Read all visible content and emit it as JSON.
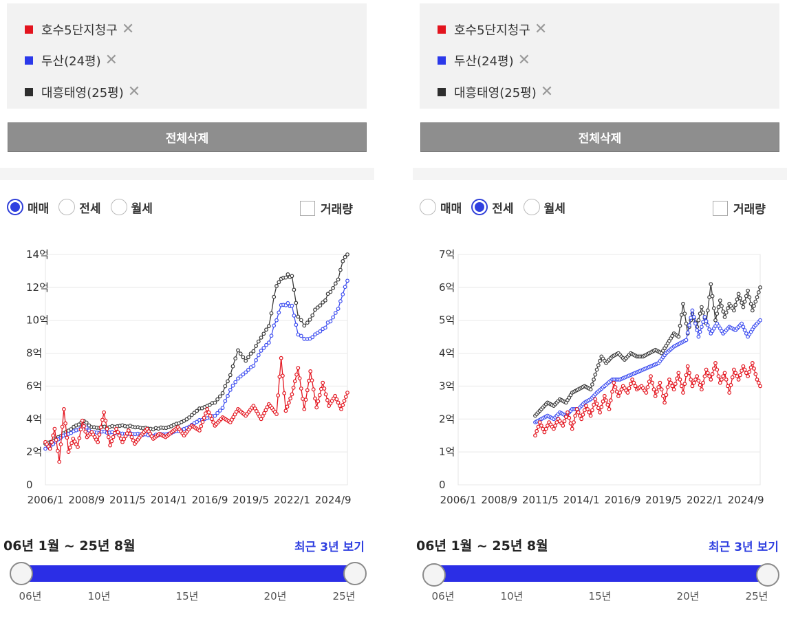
{
  "compare_list": {
    "items": [
      {
        "label": "호수5단지청구",
        "color": "#e3141e"
      },
      {
        "label": "두산(24평)",
        "color": "#2b39ea"
      },
      {
        "label": "대흥태영(25평)",
        "color": "#2e2e2e"
      }
    ],
    "remove_glyph": "✕"
  },
  "clear_button_label": "전체삭제",
  "trade_types": [
    "매매",
    "전세",
    "월세"
  ],
  "volume_label": "거래량",
  "period_text": "06년 1월 ~ 25년 8월",
  "recent_link": "최근 3년 보기",
  "slider_ticks": [
    "06년",
    "10년",
    "15년",
    "20년",
    "25년"
  ],
  "panels": [
    {
      "selected_trade": "매매"
    },
    {
      "selected_trade": "전세"
    }
  ],
  "chart_data": [
    {
      "type": "line",
      "trade": "매매",
      "x_range": [
        2006.0,
        2025.6
      ],
      "x_ticks": [
        2006.0,
        2008.67,
        2011.33,
        2014.0,
        2016.67,
        2019.33,
        2022.0,
        2024.67
      ],
      "x_tick_labels": [
        "2006/1",
        "2008/9",
        "2011/5",
        "2014/1",
        "2016/9",
        "2019/5",
        "2022/1",
        "2024/9"
      ],
      "ylim": [
        0,
        14
      ],
      "y_ticks": [
        0,
        2,
        4,
        6,
        8,
        10,
        12,
        14
      ],
      "y_tick_labels": [
        "0",
        "2억",
        "4억",
        "6억",
        "8억",
        "10억",
        "12억",
        "14억"
      ],
      "grid": true,
      "series": [
        {
          "name": "대흥태영(25평)",
          "color": "#3a3a3a",
          "style": "smooth",
          "x": [
            2006.0,
            2006.5,
            2007.0,
            2007.5,
            2008.0,
            2008.5,
            2009.0,
            2010.0,
            2011.0,
            2012.0,
            2013.0,
            2014.0,
            2015.0,
            2016.0,
            2017.0,
            2017.5,
            2018.0,
            2018.5,
            2019.0,
            2019.5,
            2020.0,
            2020.5,
            2021.0,
            2021.3,
            2021.6,
            2022.0,
            2022.4,
            2022.8,
            2023.0,
            2023.5,
            2024.0,
            2024.5,
            2025.0,
            2025.3,
            2025.6
          ],
          "y": [
            2.5,
            2.7,
            3.0,
            3.3,
            3.6,
            3.9,
            3.5,
            3.5,
            3.6,
            3.5,
            3.4,
            3.5,
            3.9,
            4.6,
            5.0,
            5.6,
            6.7,
            8.1,
            7.5,
            8.2,
            9.0,
            9.6,
            12.2,
            12.5,
            12.7,
            12.6,
            10.3,
            9.6,
            9.9,
            10.6,
            11.0,
            11.8,
            12.6,
            13.5,
            14.0
          ]
        },
        {
          "name": "두산(24평)",
          "color": "#3f4ff0",
          "style": "smooth",
          "x": [
            2006.0,
            2006.5,
            2007.0,
            2007.5,
            2008.0,
            2008.5,
            2009.0,
            2010.0,
            2011.0,
            2012.0,
            2013.0,
            2014.0,
            2015.0,
            2016.0,
            2017.0,
            2017.5,
            2018.0,
            2018.5,
            2019.0,
            2019.5,
            2020.0,
            2020.5,
            2021.0,
            2021.3,
            2021.6,
            2022.0,
            2022.4,
            2022.8,
            2023.0,
            2023.5,
            2024.0,
            2024.5,
            2025.0,
            2025.3,
            2025.6
          ],
          "y": [
            2.2,
            2.5,
            2.9,
            3.1,
            3.3,
            3.6,
            3.2,
            3.2,
            3.1,
            3.1,
            3.0,
            3.1,
            3.4,
            3.9,
            4.2,
            4.7,
            5.8,
            6.4,
            6.8,
            7.3,
            8.2,
            8.6,
            10.1,
            10.9,
            11.0,
            10.8,
            9.2,
            8.8,
            8.9,
            9.1,
            9.4,
            10.0,
            10.8,
            11.5,
            12.4
          ]
        },
        {
          "name": "호수5단지청구",
          "color": "#e3141e",
          "style": "jagged",
          "x": [
            2006.0,
            2006.3,
            2006.6,
            2006.9,
            2007.2,
            2007.5,
            2007.8,
            2008.1,
            2008.4,
            2008.7,
            2009.0,
            2009.4,
            2009.8,
            2010.2,
            2010.6,
            2011.0,
            2011.4,
            2011.8,
            2012.2,
            2012.6,
            2013.0,
            2013.4,
            2013.8,
            2014.2,
            2014.6,
            2015.0,
            2015.5,
            2016.0,
            2016.5,
            2017.0,
            2017.5,
            2018.0,
            2018.5,
            2019.0,
            2019.5,
            2020.0,
            2020.5,
            2021.0,
            2021.3,
            2021.6,
            2022.0,
            2022.4,
            2022.8,
            2023.2,
            2023.6,
            2024.0,
            2024.4,
            2024.8,
            2025.2,
            2025.6
          ],
          "y": [
            2.6,
            2.2,
            3.4,
            1.4,
            4.6,
            2.0,
            2.8,
            2.3,
            3.9,
            2.9,
            3.2,
            2.6,
            4.4,
            2.4,
            3.4,
            2.6,
            3.3,
            2.5,
            3.0,
            3.4,
            2.8,
            3.1,
            2.9,
            3.2,
            3.5,
            3.0,
            3.6,
            3.3,
            4.6,
            3.6,
            4.1,
            3.8,
            4.6,
            4.2,
            4.8,
            4.0,
            4.9,
            4.3,
            7.7,
            4.5,
            5.5,
            7.1,
            4.6,
            6.9,
            4.7,
            6.2,
            4.8,
            5.4,
            4.6,
            5.6
          ]
        }
      ]
    },
    {
      "type": "line",
      "trade": "전세",
      "x_range": [
        2006.0,
        2025.6
      ],
      "x_ticks": [
        2006.0,
        2008.67,
        2011.33,
        2014.0,
        2016.67,
        2019.33,
        2022.0,
        2024.67
      ],
      "x_tick_labels": [
        "2006/1",
        "2008/9",
        "2011/5",
        "2014/1",
        "2016/9",
        "2019/5",
        "2022/1",
        "2024/9"
      ],
      "ylim": [
        0,
        7
      ],
      "y_ticks": [
        0,
        1,
        2,
        3,
        4,
        5,
        6,
        7
      ],
      "y_tick_labels": [
        "0",
        "1억",
        "2억",
        "3억",
        "4억",
        "5억",
        "6억",
        "7억"
      ],
      "grid": true,
      "series": [
        {
          "name": "대흥태영(25평)",
          "color": "#3a3a3a",
          "style": "jagged",
          "x": [
            2011.0,
            2011.4,
            2011.8,
            2012.2,
            2012.6,
            2013.0,
            2013.4,
            2013.8,
            2014.2,
            2014.6,
            2015.0,
            2015.3,
            2015.6,
            2016.0,
            2016.4,
            2016.8,
            2017.2,
            2017.6,
            2018.0,
            2018.4,
            2018.8,
            2019.2,
            2019.6,
            2020.0,
            2020.3,
            2020.6,
            2020.9,
            2021.2,
            2021.5,
            2021.8,
            2022.1,
            2022.4,
            2022.7,
            2023.0,
            2023.3,
            2023.6,
            2023.9,
            2024.2,
            2024.5,
            2024.8,
            2025.1,
            2025.4,
            2025.6
          ],
          "y": [
            2.1,
            2.3,
            2.5,
            2.4,
            2.6,
            2.5,
            2.8,
            2.9,
            3.0,
            2.9,
            3.5,
            3.9,
            3.7,
            3.9,
            4.0,
            3.8,
            4.0,
            3.9,
            3.9,
            4.0,
            4.1,
            4.0,
            4.3,
            4.6,
            4.5,
            5.5,
            4.6,
            5.2,
            4.8,
            5.4,
            4.9,
            6.1,
            5.0,
            5.6,
            5.1,
            5.5,
            5.3,
            5.8,
            5.4,
            5.9,
            5.3,
            5.7,
            6.0
          ]
        },
        {
          "name": "두산(24평)",
          "color": "#3f4ff0",
          "style": "jagged",
          "x": [
            2011.0,
            2011.4,
            2011.8,
            2012.2,
            2012.6,
            2013.0,
            2013.4,
            2013.8,
            2014.2,
            2014.6,
            2015.0,
            2015.5,
            2016.0,
            2016.5,
            2017.0,
            2017.5,
            2018.0,
            2018.5,
            2019.0,
            2019.5,
            2020.0,
            2020.4,
            2020.8,
            2021.2,
            2021.6,
            2022.0,
            2022.4,
            2022.8,
            2023.2,
            2023.6,
            2024.0,
            2024.4,
            2024.8,
            2025.2,
            2025.6
          ],
          "y": [
            1.9,
            2.0,
            2.1,
            2.0,
            2.2,
            2.1,
            2.3,
            2.3,
            2.5,
            2.6,
            2.8,
            3.0,
            3.2,
            3.2,
            3.3,
            3.4,
            3.5,
            3.6,
            3.7,
            4.0,
            4.2,
            4.3,
            4.4,
            5.3,
            4.5,
            5.1,
            4.6,
            4.9,
            4.6,
            4.8,
            4.7,
            4.9,
            4.5,
            4.8,
            5.0
          ]
        },
        {
          "name": "호수5단지청구",
          "color": "#e3141e",
          "style": "jagged",
          "x": [
            2011.0,
            2011.3,
            2011.6,
            2011.9,
            2012.2,
            2012.5,
            2012.8,
            2013.1,
            2013.4,
            2013.7,
            2014.0,
            2014.3,
            2014.6,
            2014.9,
            2015.2,
            2015.5,
            2015.8,
            2016.1,
            2016.4,
            2016.7,
            2017.0,
            2017.3,
            2017.6,
            2017.9,
            2018.2,
            2018.5,
            2018.8,
            2019.1,
            2019.4,
            2019.7,
            2020.0,
            2020.3,
            2020.6,
            2020.9,
            2021.2,
            2021.5,
            2021.8,
            2022.1,
            2022.4,
            2022.7,
            2023.0,
            2023.3,
            2023.6,
            2023.9,
            2024.2,
            2024.5,
            2024.8,
            2025.1,
            2025.4,
            2025.6
          ],
          "y": [
            1.5,
            1.9,
            1.6,
            1.9,
            1.7,
            2.0,
            1.8,
            2.2,
            1.7,
            2.3,
            2.0,
            2.4,
            2.1,
            2.6,
            2.2,
            2.7,
            2.3,
            3.1,
            2.7,
            3.0,
            2.8,
            3.2,
            2.9,
            3.0,
            2.8,
            3.3,
            2.7,
            3.1,
            2.5,
            3.2,
            2.9,
            3.4,
            2.8,
            3.6,
            3.0,
            3.3,
            2.9,
            3.5,
            3.2,
            3.7,
            3.1,
            3.4,
            2.8,
            3.5,
            3.2,
            3.6,
            3.3,
            3.7,
            3.2,
            3.0
          ]
        }
      ]
    }
  ]
}
